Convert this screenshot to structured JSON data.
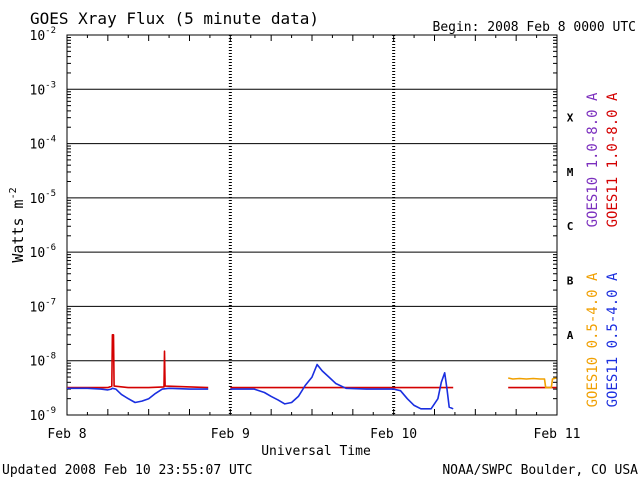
{
  "chart_data": {
    "type": "line",
    "title": "GOES Xray Flux (5 minute data)",
    "begin_label": "Begin:  2008 Feb 8 0000 UTC",
    "xlabel": "Universal Time",
    "ylabel_main": "Watts m",
    "ylabel_exp": "-2",
    "y_scale": "log",
    "ylim": [
      1e-09,
      0.01
    ],
    "xlim": [
      "2008-02-08T00:00",
      "2008-02-11T00:00"
    ],
    "x_ticks": [
      {
        "x": "2008-02-08T00:00",
        "label": "Feb 8"
      },
      {
        "x": "2008-02-09T00:00",
        "label": "Feb 9"
      },
      {
        "x": "2008-02-10T00:00",
        "label": "Feb 10"
      },
      {
        "x": "2008-02-11T00:00",
        "label": "Feb 11"
      }
    ],
    "y_ticks": [
      {
        "mant": "10",
        "exp": "-9",
        "value": 1e-09
      },
      {
        "mant": "10",
        "exp": "-8",
        "value": 1e-08
      },
      {
        "mant": "10",
        "exp": "-7",
        "value": 1e-07
      },
      {
        "mant": "10",
        "exp": "-6",
        "value": 1e-06
      },
      {
        "mant": "10",
        "exp": "-5",
        "value": 1e-05
      },
      {
        "mant": "10",
        "exp": "-4",
        "value": 0.0001
      },
      {
        "mant": "10",
        "exp": "-3",
        "value": 0.001
      },
      {
        "mant": "10",
        "exp": "-2",
        "value": 0.01
      }
    ],
    "flare_classes": [
      {
        "label": "X",
        "value": 0.0003
      },
      {
        "label": "M",
        "value": 3e-05
      },
      {
        "label": "C",
        "value": 3e-06
      },
      {
        "label": "B",
        "value": 3e-07
      },
      {
        "label": "A",
        "value": 3e-08
      }
    ],
    "grid": true,
    "legend": [
      {
        "name": "GOES10 1.0-8.0 A",
        "color": "#7b2fbe"
      },
      {
        "name": "GOES11 1.0-8.0 A",
        "color": "#d40000"
      },
      {
        "name": "GOES10 0.5-4.0 A",
        "color": "#f0a000"
      },
      {
        "name": "GOES11 0.5-4.0 A",
        "color": "#1a2fe0"
      }
    ],
    "series": [
      {
        "name": "GOES11 1.0-8.0 A",
        "color": "#d40000",
        "points": [
          [
            "2008-02-08T00:00",
            3.2e-09
          ],
          [
            "2008-02-08T06:00",
            3.2e-09
          ],
          [
            "2008-02-08T06:35",
            3.4e-09
          ],
          [
            "2008-02-08T06:40",
            3e-08
          ],
          [
            "2008-02-08T06:50",
            3e-08
          ],
          [
            "2008-02-08T06:55",
            3.4e-09
          ],
          [
            "2008-02-08T09:00",
            3.2e-09
          ],
          [
            "2008-02-08T12:00",
            3.2e-09
          ],
          [
            "2008-02-08T14:15",
            3.3e-09
          ],
          [
            "2008-02-08T14:20",
            1.5e-08
          ],
          [
            "2008-02-08T14:25",
            3.4e-09
          ],
          [
            "2008-02-08T20:45",
            3.2e-09
          ],
          null,
          [
            "2008-02-09T00:00",
            3.2e-09
          ],
          [
            "2008-02-09T12:00",
            3.2e-09
          ],
          [
            "2008-02-10T00:00",
            3.2e-09
          ],
          [
            "2008-02-10T08:45",
            3.2e-09
          ],
          null,
          [
            "2008-02-10T16:50",
            3.2e-09
          ],
          [
            "2008-02-10T23:55",
            3.2e-09
          ]
        ]
      },
      {
        "name": "GOES11 0.5-4.0 A",
        "color": "#1a2fe0",
        "points": [
          [
            "2008-02-08T00:00",
            3.1e-09
          ],
          [
            "2008-02-08T03:00",
            3.1e-09
          ],
          [
            "2008-02-08T05:00",
            3e-09
          ],
          [
            "2008-02-08T06:00",
            2.9e-09
          ],
          [
            "2008-02-08T06:30",
            3e-09
          ],
          [
            "2008-02-08T06:40",
            3.1e-09
          ],
          [
            "2008-02-08T07:10",
            3e-09
          ],
          [
            "2008-02-08T08:00",
            2.4e-09
          ],
          [
            "2008-02-08T09:00",
            2e-09
          ],
          [
            "2008-02-08T10:00",
            1.7e-09
          ],
          [
            "2008-02-08T11:00",
            1.8e-09
          ],
          [
            "2008-02-08T12:00",
            2e-09
          ],
          [
            "2008-02-08T13:00",
            2.5e-09
          ],
          [
            "2008-02-08T14:00",
            3e-09
          ],
          [
            "2008-02-08T15:00",
            3.1e-09
          ],
          [
            "2008-02-08T18:00",
            3e-09
          ],
          [
            "2008-02-08T20:45",
            3e-09
          ],
          null,
          [
            "2008-02-09T00:00",
            3e-09
          ],
          [
            "2008-02-09T03:30",
            3e-09
          ],
          [
            "2008-02-09T05:00",
            2.6e-09
          ],
          [
            "2008-02-09T06:00",
            2.2e-09
          ],
          [
            "2008-02-09T07:00",
            1.9e-09
          ],
          [
            "2008-02-09T08:00",
            1.6e-09
          ],
          [
            "2008-02-09T09:00",
            1.7e-09
          ],
          [
            "2008-02-09T10:00",
            2.2e-09
          ],
          [
            "2008-02-09T11:00",
            3.5e-09
          ],
          [
            "2008-02-09T12:00",
            5e-09
          ],
          [
            "2008-02-09T12:45",
            8.5e-09
          ],
          [
            "2008-02-09T13:30",
            6.5e-09
          ],
          [
            "2008-02-09T14:30",
            5e-09
          ],
          [
            "2008-02-09T15:30",
            3.8e-09
          ],
          [
            "2008-02-09T17:00",
            3.1e-09
          ],
          [
            "2008-02-09T20:00",
            3e-09
          ],
          [
            "2008-02-10T00:00",
            3e-09
          ],
          [
            "2008-02-10T01:00",
            2.8e-09
          ],
          [
            "2008-02-10T02:00",
            2e-09
          ],
          [
            "2008-02-10T03:00",
            1.5e-09
          ],
          [
            "2008-02-10T04:00",
            1.3e-09
          ],
          [
            "2008-02-10T05:30",
            1.3e-09
          ],
          [
            "2008-02-10T06:30",
            2e-09
          ],
          [
            "2008-02-10T07:00",
            4e-09
          ],
          [
            "2008-02-10T07:30",
            6e-09
          ],
          [
            "2008-02-10T07:50",
            3e-09
          ],
          [
            "2008-02-10T08:10",
            1.4e-09
          ],
          [
            "2008-02-10T08:45",
            1.3e-09
          ]
        ]
      },
      {
        "name": "GOES10 0.5-4.0 A",
        "color": "#f0a000",
        "points": [
          [
            "2008-02-10T16:50",
            4.8e-09
          ],
          [
            "2008-02-10T17:30",
            4.6e-09
          ],
          [
            "2008-02-10T18:30",
            4.7e-09
          ],
          [
            "2008-02-10T19:30",
            4.6e-09
          ],
          [
            "2008-02-10T20:30",
            4.7e-09
          ],
          [
            "2008-02-10T21:30",
            4.6e-09
          ],
          [
            "2008-02-10T22:10",
            4.6e-09
          ],
          [
            "2008-02-10T22:20",
            3.2e-09
          ],
          [
            "2008-02-10T23:10",
            3.2e-09
          ],
          [
            "2008-02-10T23:20",
            4.6e-09
          ],
          [
            "2008-02-10T23:55",
            4.8e-09
          ]
        ]
      }
    ]
  },
  "footer": {
    "updated": "Updated 2008 Feb 10 23:55:07 UTC",
    "source": "NOAA/SWPC Boulder, CO USA"
  }
}
